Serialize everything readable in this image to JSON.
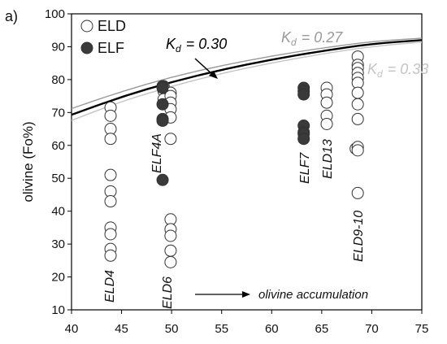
{
  "chart_data": {
    "type": "scatter",
    "panel_label": "a)",
    "ylabel": "olivine (Fo%)",
    "xlabel": "",
    "xlim": [
      40,
      75
    ],
    "ylim": [
      10,
      100
    ],
    "xticks": [
      40,
      45,
      50,
      55,
      60,
      65,
      70,
      75
    ],
    "yticks": [
      10,
      20,
      30,
      40,
      50,
      60,
      70,
      80,
      90,
      100
    ],
    "colors": {
      "ELD_fill": "#ffffff",
      "ELF_fill": "#3a3a3a",
      "marker_edge": "#333333",
      "kd030": "#000000",
      "kd027": "#999999",
      "kd033": "#c4c4c4"
    },
    "legend": {
      "position": "top-left",
      "entries": [
        {
          "label": "ELD",
          "marker": "open-circle"
        },
        {
          "label": "ELF",
          "marker": "filled-circle"
        }
      ]
    },
    "series": [
      {
        "name": "ELD",
        "marker": "open-circle",
        "points": [
          [
            43.9,
            71.5
          ],
          [
            43.9,
            69
          ],
          [
            43.9,
            65
          ],
          [
            43.9,
            62
          ],
          [
            43.9,
            51
          ],
          [
            43.9,
            46
          ],
          [
            43.9,
            43
          ],
          [
            43.9,
            35
          ],
          [
            43.9,
            33
          ],
          [
            43.9,
            28.5
          ],
          [
            43.9,
            26.5
          ],
          [
            49.2,
            78
          ],
          [
            49.2,
            76.5
          ],
          [
            49.2,
            74
          ],
          [
            49.9,
            76
          ],
          [
            49.9,
            75
          ],
          [
            49.9,
            73
          ],
          [
            49.9,
            71
          ],
          [
            49.9,
            68.5
          ],
          [
            49.9,
            62
          ],
          [
            49.9,
            37.5
          ],
          [
            49.9,
            34.5
          ],
          [
            49.9,
            32.5
          ],
          [
            49.9,
            28
          ],
          [
            49.9,
            24.5
          ],
          [
            65.5,
            77.5
          ],
          [
            65.5,
            75.5
          ],
          [
            65.5,
            73
          ],
          [
            65.5,
            69
          ],
          [
            65.5,
            66.5
          ],
          [
            68.4,
            59
          ],
          [
            68.6,
            87
          ],
          [
            68.6,
            84.5
          ],
          [
            68.6,
            83.5
          ],
          [
            68.6,
            82
          ],
          [
            68.6,
            80.5
          ],
          [
            68.6,
            79
          ],
          [
            68.6,
            76
          ],
          [
            68.6,
            72.5
          ],
          [
            68.6,
            68
          ],
          [
            68.6,
            59.5
          ],
          [
            68.6,
            58.5
          ],
          [
            68.6,
            45.5
          ]
        ]
      },
      {
        "name": "ELF",
        "marker": "filled-circle",
        "points": [
          [
            49.1,
            78
          ],
          [
            49.1,
            77.5
          ],
          [
            49.1,
            72.5
          ],
          [
            49.1,
            68
          ],
          [
            49.1,
            67.5
          ],
          [
            49.1,
            49.5
          ],
          [
            63.2,
            77.5
          ],
          [
            63.2,
            76.5
          ],
          [
            63.2,
            75.5
          ],
          [
            63.2,
            66
          ],
          [
            63.2,
            64
          ],
          [
            63.2,
            63.5
          ],
          [
            63.2,
            62
          ]
        ]
      }
    ],
    "curves": [
      {
        "label": "K",
        "sub": "d",
        "value": "= 0.30",
        "points": [
          [
            40,
            69.3
          ],
          [
            45,
            74.8
          ],
          [
            50,
            79.3
          ],
          [
            55,
            83.0
          ],
          [
            60,
            86.1
          ],
          [
            65,
            88.7
          ],
          [
            70,
            90.9
          ],
          [
            75,
            92.0
          ]
        ]
      },
      {
        "label": "K",
        "sub": "d",
        "value": "= 0.27",
        "points": [
          [
            40,
            71.2
          ],
          [
            45,
            76.4
          ],
          [
            50,
            80.8
          ],
          [
            55,
            84.3
          ],
          [
            60,
            87.2
          ],
          [
            65,
            89.6
          ],
          [
            70,
            91.6
          ],
          [
            75,
            92.6
          ]
        ]
      },
      {
        "label": "K",
        "sub": "d",
        "value": "= 0.33",
        "points": [
          [
            40,
            67.6
          ],
          [
            45,
            73.4
          ],
          [
            50,
            78.0
          ],
          [
            55,
            81.9
          ],
          [
            60,
            85.1
          ],
          [
            65,
            87.8
          ],
          [
            70,
            90.1
          ],
          [
            75,
            91.4
          ]
        ]
      }
    ],
    "group_labels": [
      "ELD4",
      "ELD6",
      "ELF4A",
      "ELF7",
      "ELD13",
      "ELD9-10"
    ],
    "annotation": "olivine accumulation"
  }
}
